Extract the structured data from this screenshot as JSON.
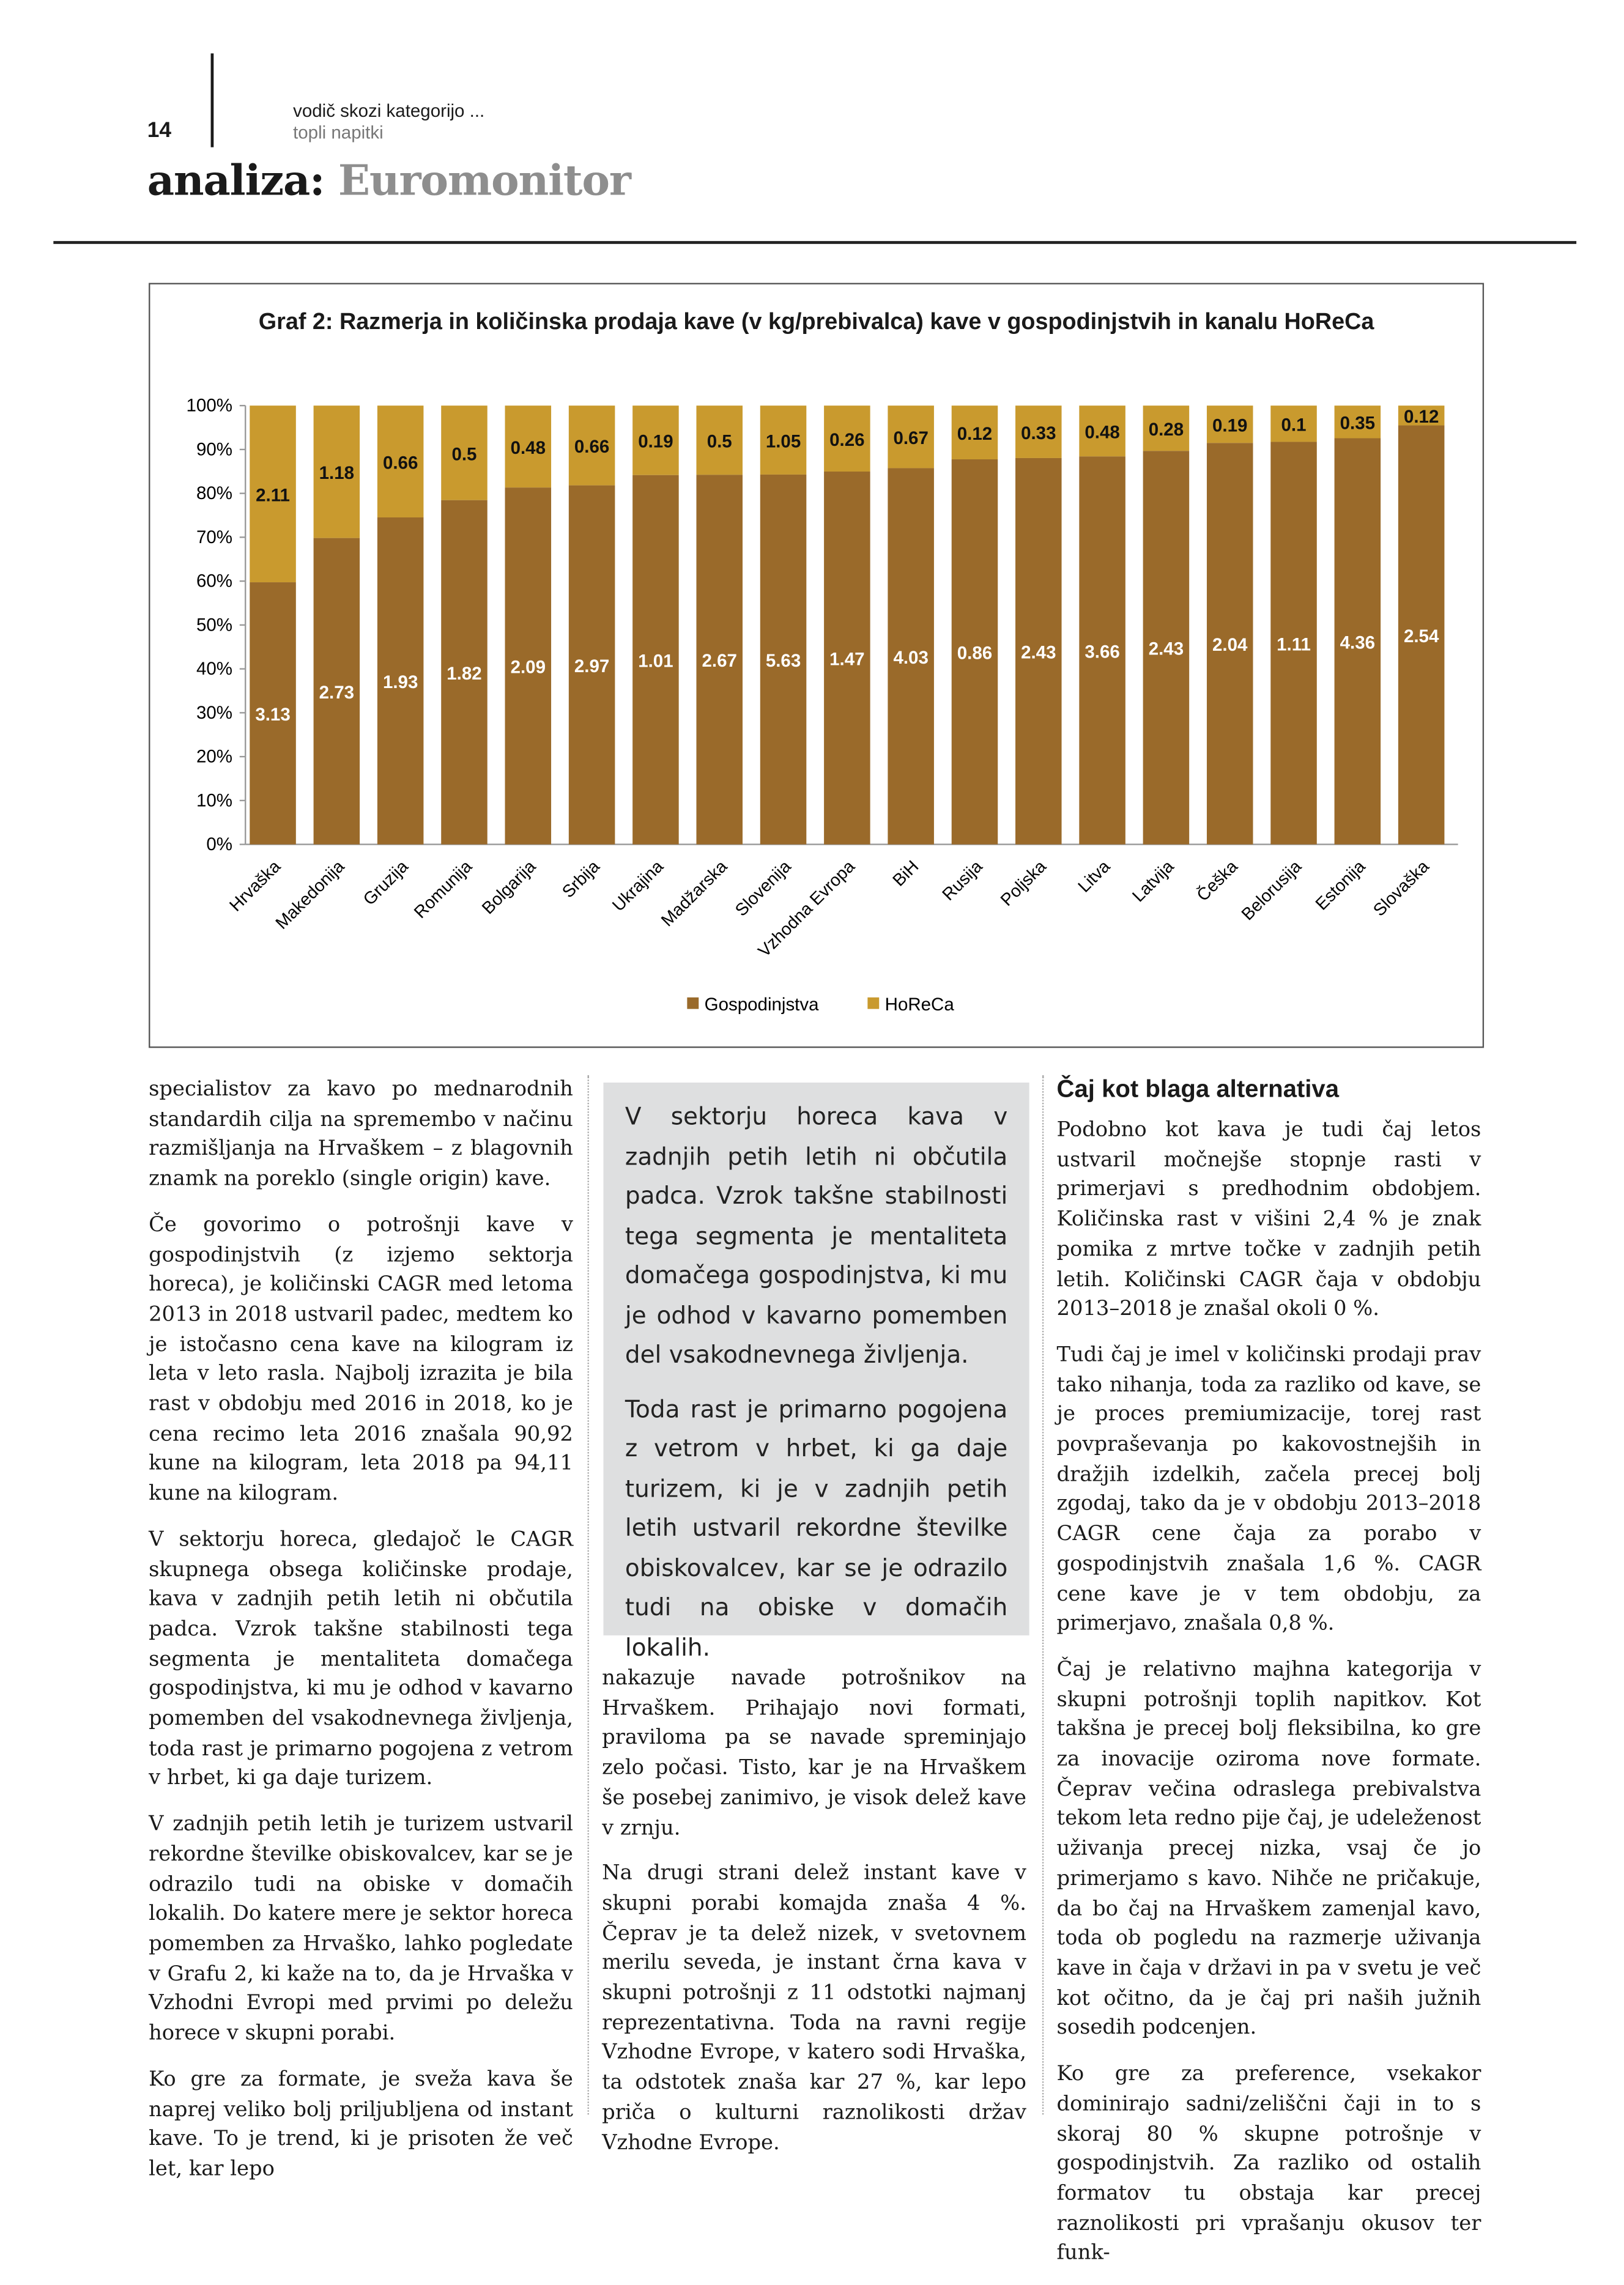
{
  "header": {
    "page_number": "14",
    "kicker": "vodič skozi kategorijo ...",
    "kicker_sub": "topli napitki",
    "title_prefix": "analiza:",
    "title_main": "Euromonitor"
  },
  "chart_data": {
    "type": "bar",
    "stacked": "100%",
    "title": "Graf 2: Razmerja in količinska prodaja kave (v kg/prebivalca) kave v gospodinjstvih in kanalu HoReCa",
    "categories": [
      "Hrvaška",
      "Makedonija",
      "Gruzija",
      "Romunija",
      "Bolgarija",
      "Srbija",
      "Ukrajina",
      "Madžarska",
      "Slovenija",
      "Vzhodna Evropa",
      "BiH",
      "Rusija",
      "Poljska",
      "Litva",
      "Latvija",
      "Češka",
      "Belorusija",
      "Estonija",
      "Slovaška"
    ],
    "series": [
      {
        "name": "Gospodinjstva",
        "color": "#9a6a2a",
        "values": [
          3.13,
          2.73,
          1.93,
          1.82,
          2.09,
          2.97,
          1.01,
          2.67,
          5.63,
          1.47,
          4.03,
          0.86,
          2.43,
          3.66,
          2.43,
          2.04,
          1.11,
          4.36,
          2.54
        ]
      },
      {
        "name": "HoReCa",
        "color": "#c99a2e",
        "values": [
          2.11,
          1.18,
          0.66,
          0.5,
          0.48,
          0.66,
          0.19,
          0.5,
          1.05,
          0.26,
          0.67,
          0.12,
          0.33,
          0.48,
          0.28,
          0.19,
          0.1,
          0.35,
          0.12
        ]
      }
    ],
    "yticks": [
      "0%",
      "10%",
      "20%",
      "30%",
      "40%",
      "50%",
      "60%",
      "70%",
      "80%",
      "90%",
      "100%"
    ],
    "ylim": [
      0,
      100
    ],
    "legend": "bottom",
    "grid": false
  },
  "col1": [
    "specialistov za kavo po mednarodnih standardih cilja na spremembo v načinu razmišljanja na Hrvaškem – z blagovnih znamk na poreklo (single origin) kave.",
    "Če govorimo o potrošnji kave v gospodinjstvih (z izjemo sektorja horeca), je količinski CAGR med letoma 2013 in 2018 ustvaril padec, medtem ko je istočasno cena kave na kilogram iz leta v leto rasla. Najbolj izrazita je bila rast v obdobju med 2016 in 2018, ko je cena recimo leta 2016 znašala 90,92 kune na kilogram, leta 2018 pa 94,11 kune na kilogram.",
    "V sektorju horeca, gledajoč le CAGR skupnega obsega količinske prodaje, kava v zadnjih petih letih ni občutila padca. Vzrok takšne stabilnosti tega segmenta je mentaliteta domačega gospodinjstva, ki mu je odhod v kavarno pomemben del vsakodnevnega življenja, toda rast je primarno pogojena z vetrom v hrbet, ki ga daje turizem.",
    "V zadnjih petih letih je turizem ustvaril rekordne številke obiskovalcev, kar se je odrazilo tudi na obiske v domačih lokalih. Do katere mere je sektor horeca pomemben za Hrvaško, lahko pogledate v Grafu 2, ki kaže na to, da je Hrvaška v Vzhodni Evropi med prvimi po deležu horece v skupni porabi.",
    "Ko gre za formate, je sveža kava še naprej veliko bolj priljubljena od instant kave. To je trend, ki je prisoten že več let, kar lepo"
  ],
  "pullquote": [
    "V sektorju horeca kava v zadnjih petih letih ni občutila padca. Vzrok takšne stabilnosti tega segmenta je mentaliteta domačega gospodinjstva, ki mu je odhod v kavarno pomemben del vsakodnevnega življenja.",
    "Toda rast je primarno pogojena z vetrom v hrbet, ki ga daje turizem, ki je v zadnjih petih letih ustvaril rekordne številke obiskovalcev, kar se je odrazilo tudi na obiske v domačih lokalih."
  ],
  "col2": [
    "nakazuje navade potrošnikov na Hrvaškem. Prihajajo novi formati, praviloma pa se navade spreminjajo zelo počasi. Tisto, kar je na Hrvaškem še posebej zanimivo, je visok delež kave v zrnju.",
    "Na drugi strani delež instant kave v skupni porabi komajda znaša 4 %. Čeprav je ta delež nizek, v svetovnem merilu seveda, je instant črna kava v skupni potrošnji z 11 odstotki najmanj reprezentativna. Toda na ravni regije Vzhodne Evrope, v katero sodi Hrvaška, ta odstotek znaša kar 27 %, kar lepo priča o kulturni raznolikosti držav Vzhodne Evrope."
  ],
  "col3": {
    "heading": "Čaj kot blaga alternativa",
    "paragraphs": [
      "Podobno kot kava je tudi čaj letos ustvaril močnejše stopnje rasti v primerjavi s predhodnim obdobjem. Količinska rast v višini 2,4 % je znak pomika z mrtve točke v zadnjih petih letih. Količinski CAGR čaja v obdobju 2013–2018 je znašal okoli 0 %.",
      "Tudi čaj je imel v količinski prodaji prav tako nihanja, toda za razliko od kave, se je proces premiumizacije, torej rast povpraševanja po kakovostnejših in dražjih izdelkih, začela precej bolj zgodaj, tako da je v obdobju 2013–2018 CAGR cene čaja za porabo v gospodinjstvih znašala 1,6 %. CAGR cene kave je v tem obdobju, za primerjavo, znašala 0,8 %.",
      "Čaj je relativno majhna kategorija v skupni potrošnji toplih napitkov. Kot takšna je precej bolj fleksibilna, ko gre za inovacije oziroma nove formate. Čeprav večina odraslega prebivalstva tekom leta redno pije čaj, je udeleženost uživanja precej nizka, vsaj če jo primerjamo s kavo. Nihče ne pričakuje, da bo čaj na Hrvaškem zamenjal kavo, toda ob pogledu na razmerje uživanja kave in čaja v državi in pa v svetu je več kot očitno, da je čaj pri naših južnih sosedih podcenjen.",
      "Ko gre za preference, vsekakor dominirajo sadni/zeliščni čaji in to s skoraj 80 % skupne potrošnje v gospodinjstvih. Za razliko od ostalih formatov tu obstaja kar precej raznolikosti pri vprašanju okusov ter funk-"
    ]
  }
}
